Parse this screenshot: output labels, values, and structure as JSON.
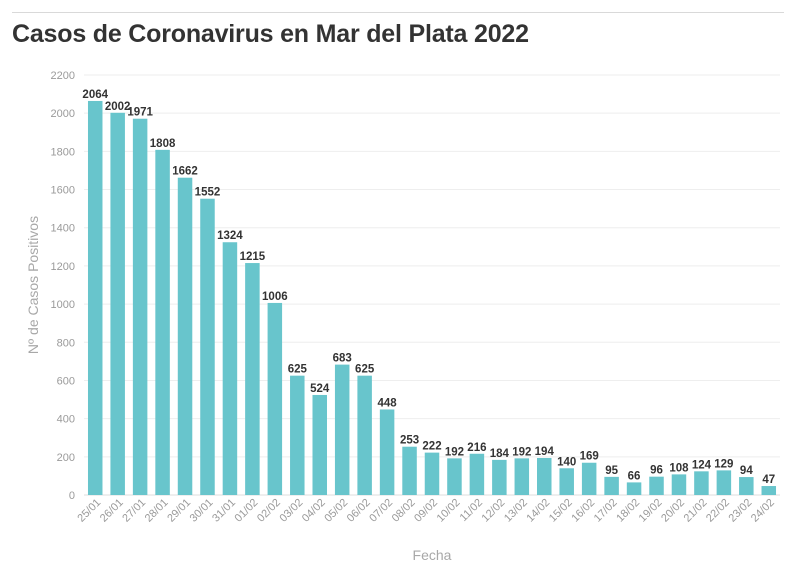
{
  "title": "Casos de Coronavirus en Mar del Plata 2022",
  "chart_data": {
    "type": "bar",
    "title": "Casos de Coronavirus en Mar del Plata 2022",
    "xlabel": "Fecha",
    "ylabel": "Nº de Casos Positivos",
    "ylim": [
      0,
      2200
    ],
    "yticks": [
      0,
      200,
      400,
      600,
      800,
      1000,
      1200,
      1400,
      1600,
      1800,
      2000,
      2200
    ],
    "grid": true,
    "bar_color": "#68c5cc",
    "categories": [
      "25/01",
      "26/01",
      "27/01",
      "28/01",
      "29/01",
      "30/01",
      "31/01",
      "01/02",
      "02/02",
      "03/02",
      "04/02",
      "05/02",
      "06/02",
      "07/02",
      "08/02",
      "09/02",
      "10/02",
      "11/02",
      "12/02",
      "13/02",
      "14/02",
      "15/02",
      "16/02",
      "17/02",
      "18/02",
      "19/02",
      "20/02",
      "21/02",
      "22/02",
      "23/02",
      "24/02"
    ],
    "values": [
      2064,
      2002,
      1971,
      1808,
      1662,
      1552,
      1324,
      1215,
      1006,
      625,
      524,
      683,
      625,
      448,
      253,
      222,
      192,
      216,
      184,
      192,
      194,
      140,
      169,
      95,
      66,
      96,
      108,
      124,
      129,
      94,
      47
    ]
  }
}
